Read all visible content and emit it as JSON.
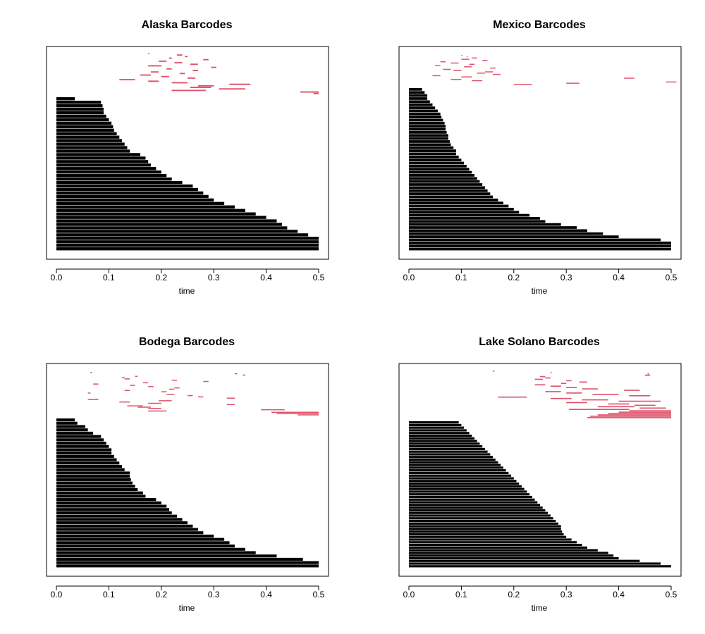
{
  "chart_data": [
    {
      "type": "barcode",
      "title": "Alaska Barcodes",
      "xlabel": "time",
      "xlim": [
        0,
        0.5
      ],
      "xticks": [
        "0.0",
        "0.1",
        "0.2",
        "0.3",
        "0.4",
        "0.5"
      ],
      "colors": {
        "h0": "#000000",
        "h1": "#DF536B"
      },
      "h0_death_times": [
        0.035,
        0.085,
        0.088,
        0.09,
        0.09,
        0.095,
        0.1,
        0.105,
        0.108,
        0.11,
        0.115,
        0.12,
        0.125,
        0.13,
        0.135,
        0.14,
        0.16,
        0.17,
        0.175,
        0.18,
        0.19,
        0.2,
        0.21,
        0.22,
        0.24,
        0.26,
        0.27,
        0.28,
        0.29,
        0.3,
        0.32,
        0.34,
        0.36,
        0.38,
        0.4,
        0.42,
        0.43,
        0.44,
        0.46,
        0.48,
        0.5,
        0.5,
        0.5,
        0.5
      ],
      "h1_intervals": [
        [
          0.175,
          0.177
        ],
        [
          0.23,
          0.24
        ],
        [
          0.245,
          0.25
        ],
        [
          0.215,
          0.22
        ],
        [
          0.28,
          0.29
        ],
        [
          0.195,
          0.21
        ],
        [
          0.225,
          0.24
        ],
        [
          0.255,
          0.27
        ],
        [
          0.175,
          0.2
        ],
        [
          0.295,
          0.305
        ],
        [
          0.21,
          0.22
        ],
        [
          0.26,
          0.27
        ],
        [
          0.18,
          0.195
        ],
        [
          0.235,
          0.245
        ],
        [
          0.16,
          0.18
        ],
        [
          0.2,
          0.215
        ],
        [
          0.25,
          0.265
        ],
        [
          0.12,
          0.15
        ],
        [
          0.175,
          0.195
        ],
        [
          0.22,
          0.25
        ],
        [
          0.33,
          0.37
        ],
        [
          0.27,
          0.3
        ],
        [
          0.255,
          0.295
        ],
        [
          0.31,
          0.36
        ],
        [
          0.22,
          0.285
        ],
        [
          0.465,
          0.5
        ],
        [
          0.49,
          0.5
        ]
      ]
    },
    {
      "type": "barcode",
      "title": "Mexico Barcodes",
      "xlabel": "time",
      "xlim": [
        0,
        0.5
      ],
      "xticks": [
        "0.0",
        "0.1",
        "0.2",
        "0.3",
        "0.4",
        "0.5"
      ],
      "colors": {
        "h0": "#000000",
        "h1": "#DF536B"
      },
      "h0_death_times": [
        0.025,
        0.03,
        0.035,
        0.035,
        0.04,
        0.045,
        0.05,
        0.055,
        0.06,
        0.062,
        0.065,
        0.068,
        0.07,
        0.07,
        0.072,
        0.075,
        0.075,
        0.078,
        0.08,
        0.085,
        0.09,
        0.09,
        0.095,
        0.1,
        0.105,
        0.11,
        0.115,
        0.12,
        0.125,
        0.13,
        0.135,
        0.14,
        0.145,
        0.15,
        0.155,
        0.16,
        0.17,
        0.18,
        0.19,
        0.2,
        0.21,
        0.23,
        0.25,
        0.26,
        0.29,
        0.32,
        0.34,
        0.37,
        0.4,
        0.48,
        0.5,
        0.5,
        0.5
      ],
      "h1_intervals": [
        [
          0.1,
          0.102
        ],
        [
          0.11,
          0.112
        ],
        [
          0.12,
          0.13
        ],
        [
          0.1,
          0.115
        ],
        [
          0.14,
          0.15
        ],
        [
          0.06,
          0.07
        ],
        [
          0.08,
          0.095
        ],
        [
          0.115,
          0.125
        ],
        [
          0.05,
          0.06
        ],
        [
          0.105,
          0.12
        ],
        [
          0.155,
          0.165
        ],
        [
          0.065,
          0.08
        ],
        [
          0.085,
          0.1
        ],
        [
          0.145,
          0.16
        ],
        [
          0.13,
          0.145
        ],
        [
          0.16,
          0.175
        ],
        [
          0.045,
          0.06
        ],
        [
          0.1,
          0.12
        ],
        [
          0.41,
          0.43
        ],
        [
          0.08,
          0.1
        ],
        [
          0.12,
          0.14
        ],
        [
          0.49,
          0.51
        ],
        [
          0.3,
          0.325
        ],
        [
          0.2,
          0.235
        ]
      ]
    },
    {
      "type": "barcode",
      "title": "Bodega Barcodes",
      "xlabel": "time",
      "xlim": [
        0,
        0.5
      ],
      "xticks": [
        "0.0",
        "0.1",
        "0.2",
        "0.3",
        "0.4",
        "0.5"
      ],
      "colors": {
        "h0": "#000000",
        "h1": "#DF536B"
      },
      "h0_death_times": [
        0.035,
        0.04,
        0.055,
        0.06,
        0.07,
        0.085,
        0.09,
        0.095,
        0.1,
        0.105,
        0.105,
        0.11,
        0.115,
        0.12,
        0.125,
        0.13,
        0.14,
        0.14,
        0.142,
        0.145,
        0.15,
        0.155,
        0.165,
        0.17,
        0.19,
        0.2,
        0.21,
        0.215,
        0.22,
        0.23,
        0.24,
        0.25,
        0.26,
        0.27,
        0.28,
        0.3,
        0.32,
        0.33,
        0.34,
        0.36,
        0.38,
        0.42,
        0.47,
        0.5,
        0.5
      ],
      "h1_intervals": [
        [
          0.065,
          0.068
        ],
        [
          0.34,
          0.345
        ],
        [
          0.355,
          0.36
        ],
        [
          0.15,
          0.155
        ],
        [
          0.125,
          0.13
        ],
        [
          0.13,
          0.14
        ],
        [
          0.22,
          0.23
        ],
        [
          0.28,
          0.29
        ],
        [
          0.165,
          0.175
        ],
        [
          0.07,
          0.08
        ],
        [
          0.14,
          0.15
        ],
        [
          0.175,
          0.185
        ],
        [
          0.225,
          0.235
        ],
        [
          0.215,
          0.225
        ],
        [
          0.13,
          0.14
        ],
        [
          0.2,
          0.21
        ],
        [
          0.06,
          0.065
        ],
        [
          0.21,
          0.225
        ],
        [
          0.25,
          0.26
        ],
        [
          0.27,
          0.28
        ],
        [
          0.325,
          0.34
        ],
        [
          0.06,
          0.08
        ],
        [
          0.195,
          0.22
        ],
        [
          0.12,
          0.14
        ],
        [
          0.175,
          0.2
        ],
        [
          0.325,
          0.34
        ],
        [
          0.135,
          0.165
        ],
        [
          0.155,
          0.18
        ],
        [
          0.175,
          0.2
        ],
        [
          0.39,
          0.435
        ],
        [
          0.175,
          0.21
        ],
        [
          0.41,
          0.5
        ],
        [
          0.42,
          0.5
        ],
        [
          0.46,
          0.5
        ]
      ]
    },
    {
      "type": "barcode",
      "title": "Lake Solano Barcodes",
      "xlabel": "time",
      "xlim": [
        0,
        0.5
      ],
      "xticks": [
        "0.0",
        "0.1",
        "0.2",
        "0.3",
        "0.4",
        "0.5"
      ],
      "colors": {
        "h0": "#000000",
        "h1": "#DF536B"
      },
      "h0_death_times": [
        0.095,
        0.1,
        0.105,
        0.11,
        0.115,
        0.12,
        0.125,
        0.13,
        0.135,
        0.14,
        0.145,
        0.15,
        0.155,
        0.16,
        0.165,
        0.17,
        0.175,
        0.18,
        0.185,
        0.19,
        0.195,
        0.2,
        0.205,
        0.21,
        0.215,
        0.22,
        0.225,
        0.23,
        0.235,
        0.24,
        0.245,
        0.25,
        0.255,
        0.26,
        0.265,
        0.27,
        0.275,
        0.28,
        0.285,
        0.29,
        0.29,
        0.292,
        0.295,
        0.3,
        0.31,
        0.32,
        0.33,
        0.34,
        0.36,
        0.38,
        0.39,
        0.4,
        0.44,
        0.48,
        0.5
      ],
      "h1_intervals": [
        [
          0.16,
          0.163
        ],
        [
          0.27,
          0.272
        ],
        [
          0.455,
          0.458
        ],
        [
          0.45,
          0.46
        ],
        [
          0.25,
          0.26
        ],
        [
          0.26,
          0.27
        ],
        [
          0.24,
          0.255
        ],
        [
          0.3,
          0.31
        ],
        [
          0.325,
          0.34
        ],
        [
          0.29,
          0.3
        ],
        [
          0.24,
          0.26
        ],
        [
          0.27,
          0.29
        ],
        [
          0.3,
          0.32
        ],
        [
          0.33,
          0.36
        ],
        [
          0.41,
          0.44
        ],
        [
          0.26,
          0.29
        ],
        [
          0.3,
          0.33
        ],
        [
          0.35,
          0.4
        ],
        [
          0.42,
          0.46
        ],
        [
          0.17,
          0.225
        ],
        [
          0.27,
          0.31
        ],
        [
          0.33,
          0.38
        ],
        [
          0.4,
          0.48
        ],
        [
          0.3,
          0.34
        ],
        [
          0.38,
          0.42
        ],
        [
          0.43,
          0.47
        ],
        [
          0.36,
          0.43
        ],
        [
          0.44,
          0.49
        ],
        [
          0.305,
          0.42
        ],
        [
          0.42,
          0.5
        ],
        [
          0.4,
          0.5
        ],
        [
          0.38,
          0.5
        ],
        [
          0.36,
          0.5
        ],
        [
          0.345,
          0.5
        ],
        [
          0.34,
          0.5
        ]
      ]
    }
  ]
}
